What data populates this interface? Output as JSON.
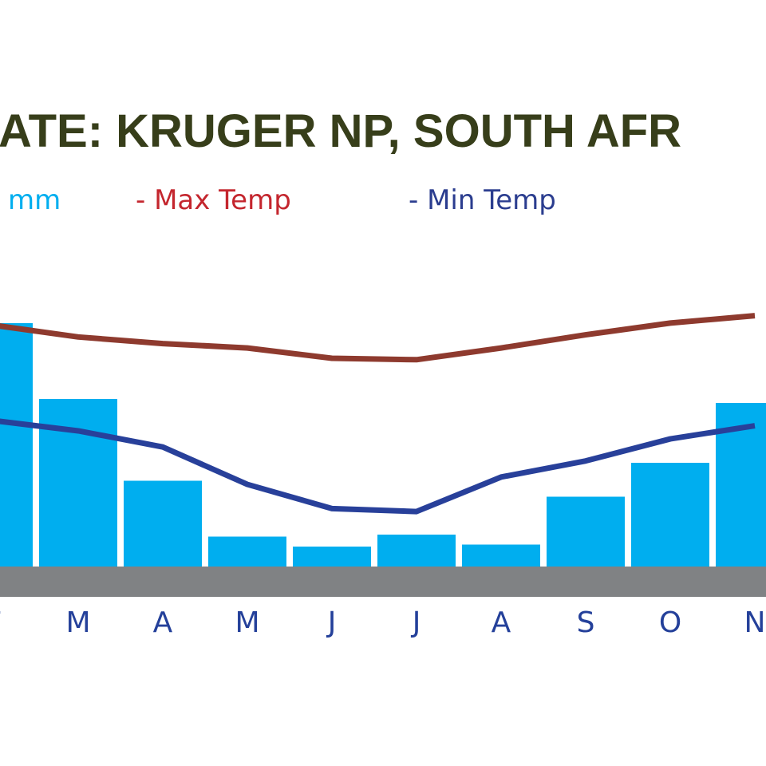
{
  "chart_data": {
    "type": "bar-line",
    "title": "ATE: KRUGER NP, SOUTH AFR",
    "categories": [
      "F",
      "M",
      "A",
      "M",
      "J",
      "J",
      "A",
      "S",
      "O",
      "N"
    ],
    "series": [
      {
        "name": "mm",
        "type": "bar",
        "color": "#00aeef",
        "values": [
          122,
          84,
          43,
          15,
          10,
          16,
          11,
          35,
          52,
          82
        ]
      },
      {
        "name": "Max Temp",
        "type": "line",
        "axis": "y2",
        "color": "#8e3a2e",
        "legend_color": "#c4262e",
        "values": [
          30.9,
          29.3,
          28.4,
          27.8,
          26.4,
          26.2,
          27.8,
          29.6,
          31.2,
          32.2
        ]
      },
      {
        "name": "Min Temp",
        "type": "line",
        "axis": "y2",
        "color": "#28409a",
        "legend_color": "#2b3d8f",
        "values": [
          17.9,
          16.5,
          14.3,
          9.2,
          5.9,
          5.5,
          10.2,
          12.4,
          15.4,
          17.2
        ]
      }
    ],
    "ylim": [
      0,
      250
    ],
    "y2lim": [
      -2,
      66
    ]
  }
}
